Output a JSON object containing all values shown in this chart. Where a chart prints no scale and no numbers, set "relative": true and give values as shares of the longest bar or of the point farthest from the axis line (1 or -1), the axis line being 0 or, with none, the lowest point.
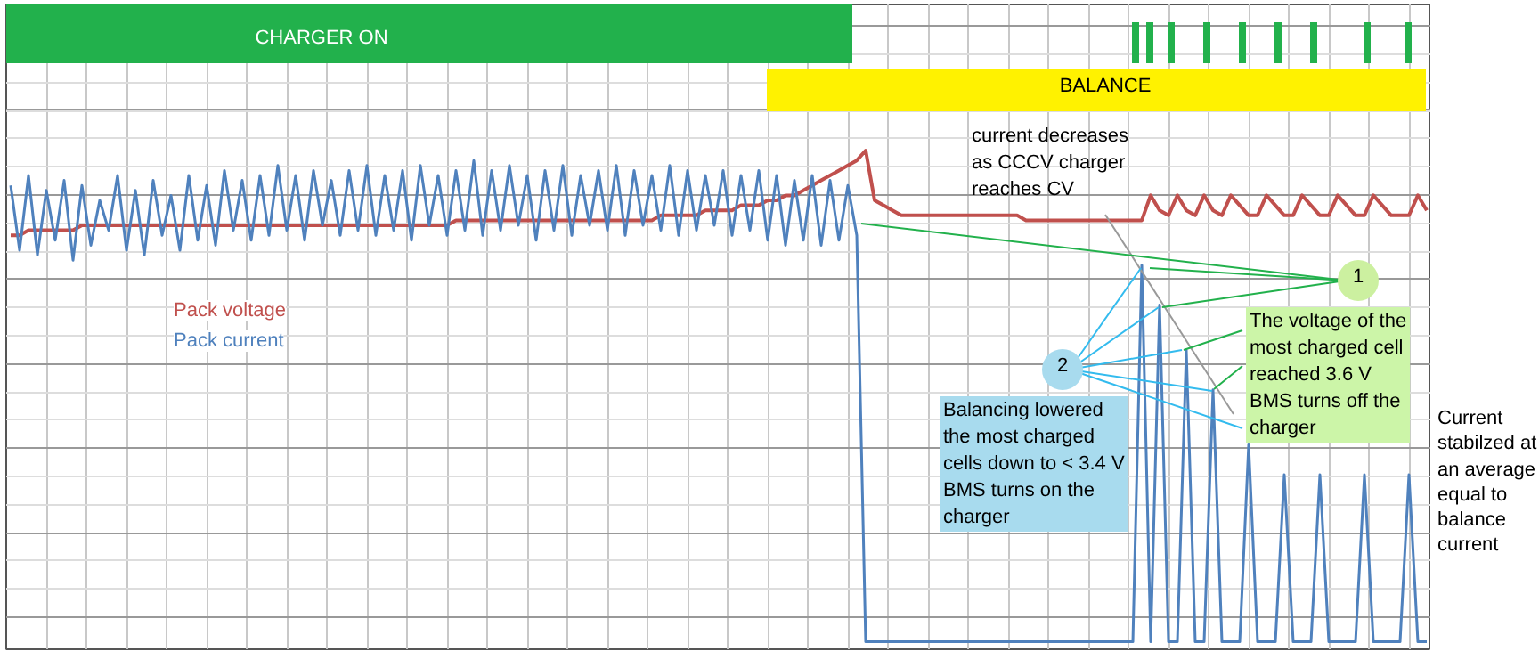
{
  "chart_data": {
    "type": "line",
    "relative": true,
    "grid": true,
    "categories": [
      null,
      null,
      null,
      null,
      null,
      null,
      null,
      null,
      null,
      null,
      null,
      null,
      null,
      null,
      null,
      null,
      null,
      null,
      null,
      null,
      null,
      null,
      null,
      null,
      null,
      null,
      null,
      null,
      null,
      null,
      null,
      null,
      null,
      null,
      null,
      null,
      null,
      null,
      null,
      null,
      null,
      null,
      null,
      null,
      null,
      null,
      null,
      null,
      null,
      null,
      null,
      null,
      null,
      null,
      null,
      null,
      null,
      null,
      null,
      null,
      null,
      null,
      null,
      null,
      null,
      null,
      null,
      null,
      null,
      null,
      null,
      null,
      null,
      null,
      null,
      null,
      null,
      null,
      null,
      null,
      null,
      null,
      null,
      null,
      null,
      null,
      null,
      null,
      null,
      null,
      null,
      null,
      null,
      null,
      null,
      null,
      null,
      null,
      null,
      null,
      null,
      null,
      null,
      null,
      null,
      null,
      null,
      null,
      null,
      null,
      null,
      null,
      null,
      null,
      null,
      null,
      null,
      null,
      null,
      null,
      null,
      null,
      null,
      null,
      null,
      null,
      null,
      null,
      null,
      null,
      null,
      null,
      null,
      null,
      null,
      null,
      null,
      null,
      null,
      null,
      null,
      null,
      null,
      null,
      null,
      null,
      null,
      null,
      null,
      null,
      null,
      null,
      null,
      null,
      null,
      null,
      null,
      null,
      null,
      null
    ],
    "series": [
      {
        "name": "Pack voltage",
        "color": "#c0504d",
        "values": [
          0.83,
          0.83,
          0.84,
          0.84,
          0.84,
          0.84,
          0.84,
          0.84,
          0.85,
          0.85,
          0.85,
          0.85,
          0.85,
          0.85,
          0.85,
          0.85,
          0.85,
          0.85,
          0.85,
          0.85,
          0.85,
          0.85,
          0.85,
          0.85,
          0.85,
          0.85,
          0.85,
          0.85,
          0.85,
          0.85,
          0.85,
          0.85,
          0.85,
          0.85,
          0.85,
          0.85,
          0.85,
          0.85,
          0.85,
          0.85,
          0.85,
          0.85,
          0.85,
          0.85,
          0.85,
          0.85,
          0.85,
          0.85,
          0.85,
          0.85,
          0.86,
          0.86,
          0.86,
          0.86,
          0.86,
          0.86,
          0.86,
          0.86,
          0.86,
          0.86,
          0.86,
          0.86,
          0.86,
          0.86,
          0.86,
          0.86,
          0.86,
          0.86,
          0.86,
          0.86,
          0.86,
          0.86,
          0.86,
          0.87,
          0.87,
          0.87,
          0.87,
          0.87,
          0.88,
          0.88,
          0.88,
          0.88,
          0.89,
          0.89,
          0.89,
          0.9,
          0.9,
          0.91,
          0.91,
          0.92,
          0.93,
          0.94,
          0.95,
          0.96,
          0.97,
          0.98,
          1.0,
          0.9,
          0.89,
          0.88,
          0.87,
          0.87,
          0.87,
          0.87,
          0.87,
          0.87,
          0.87,
          0.87,
          0.87,
          0.87,
          0.87,
          0.87,
          0.87,
          0.87,
          0.86,
          0.86,
          0.86,
          0.86,
          0.86,
          0.86,
          0.86,
          0.86,
          0.86,
          0.86,
          0.86,
          0.86,
          0.86,
          0.86,
          0.91,
          0.88,
          0.87,
          0.91,
          0.88,
          0.87,
          0.91,
          0.88,
          0.87,
          0.91,
          0.89,
          0.87,
          0.87,
          0.91,
          0.89,
          0.87,
          0.87,
          0.91,
          0.89,
          0.87,
          0.87,
          0.91,
          0.89,
          0.87,
          0.87,
          0.91,
          0.89,
          0.87,
          0.87,
          0.87,
          0.91,
          0.88
        ]
      },
      {
        "name": "Pack current",
        "color": "#4f81bd",
        "values": [
          0.93,
          0.8,
          0.95,
          0.79,
          0.92,
          0.82,
          0.94,
          0.78,
          0.93,
          0.81,
          0.9,
          0.84,
          0.95,
          0.8,
          0.92,
          0.79,
          0.94,
          0.83,
          0.91,
          0.8,
          0.95,
          0.82,
          0.93,
          0.81,
          0.96,
          0.84,
          0.94,
          0.82,
          0.95,
          0.83,
          0.97,
          0.84,
          0.95,
          0.82,
          0.96,
          0.85,
          0.94,
          0.83,
          0.96,
          0.84,
          0.97,
          0.83,
          0.95,
          0.84,
          0.96,
          0.82,
          0.97,
          0.85,
          0.95,
          0.83,
          0.96,
          0.84,
          0.98,
          0.83,
          0.96,
          0.84,
          0.97,
          0.85,
          0.95,
          0.82,
          0.96,
          0.84,
          0.97,
          0.83,
          0.95,
          0.85,
          0.96,
          0.84,
          0.97,
          0.83,
          0.96,
          0.85,
          0.95,
          0.84,
          0.97,
          0.83,
          0.96,
          0.84,
          0.95,
          0.85,
          0.96,
          0.83,
          0.95,
          0.84,
          0.96,
          0.82,
          0.95,
          0.81,
          0.94,
          0.82,
          0.95,
          0.81,
          0.94,
          0.82,
          0.93,
          0.83,
          0.015,
          0.015,
          0.015,
          0.015,
          0.015,
          0.015,
          0.015,
          0.015,
          0.015,
          0.015,
          0.015,
          0.015,
          0.015,
          0.015,
          0.015,
          0.015,
          0.015,
          0.015,
          0.015,
          0.015,
          0.015,
          0.015,
          0.015,
          0.015,
          0.015,
          0.015,
          0.015,
          0.015,
          0.015,
          0.015,
          0.015,
          0.77,
          0.015,
          0.69,
          0.015,
          0.015,
          0.6,
          0.015,
          0.015,
          0.52,
          0.015,
          0.015,
          0.015,
          0.41,
          0.015,
          0.015,
          0.015,
          0.35,
          0.015,
          0.015,
          0.015,
          0.35,
          0.015,
          0.015,
          0.015,
          0.015,
          0.35,
          0.015,
          0.015,
          0.015,
          0.015,
          0.35,
          0.015,
          0.015
        ]
      }
    ],
    "annotations": [
      "CHARGER ON",
      "BALANCE",
      "current decreases\nas CCCV charger\nreaches CV",
      "1",
      "The voltage of the\nmost charged cell\nreached 3.6 V\nBMS turns off the\ncharger",
      "2",
      "Balancing lowered\nthe most charged\ncells down to < 3.4 V\nBMS turns on the\ncharger",
      "Current\nstabilzed at\nan average\nequal to\nbalance\ncurrent"
    ]
  }
}
